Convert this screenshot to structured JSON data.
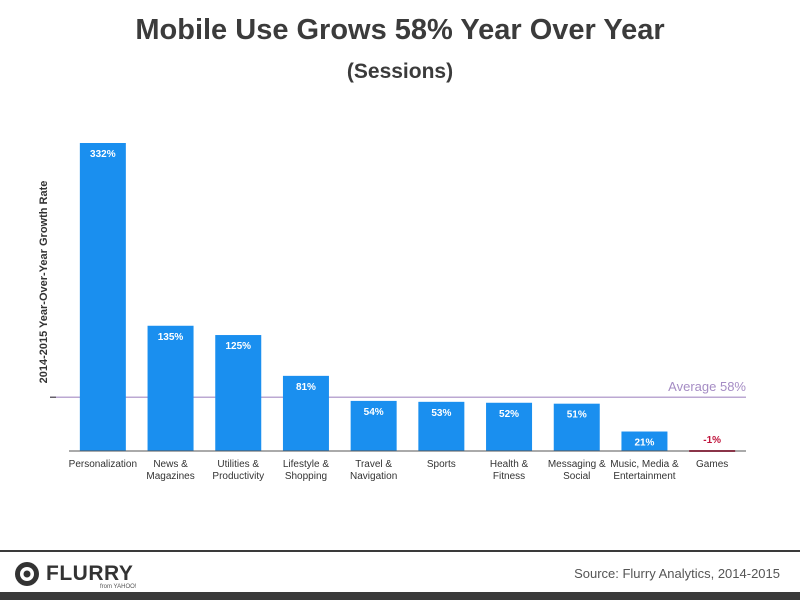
{
  "title": "Mobile Use Grows 58% Year Over Year",
  "subtitle": "(Sessions)",
  "footer": {
    "brand": "FLURRY",
    "brand_sub": "from YAHOO!",
    "source": "Source: Flurry Analytics, 2014-2015"
  },
  "colors": {
    "bar": "#1a8fef",
    "negative_bar": "#c0143c",
    "average_line": "#a58cc4",
    "axis": "#555555"
  },
  "chart_data": {
    "type": "bar",
    "title": "Mobile Use Grows 58% Year Over Year",
    "subtitle": "(Sessions)",
    "ylabel": "2014-2015 Year-Over-Year Growth Rate",
    "xlabel": "",
    "categories": [
      [
        "Personalization"
      ],
      [
        "News &",
        "Magazines"
      ],
      [
        "Utilities &",
        "Productivity"
      ],
      [
        "Lifestyle &",
        "Shopping"
      ],
      [
        "Travel &",
        "Navigation"
      ],
      [
        "Sports"
      ],
      [
        "Health &",
        "Fitness"
      ],
      [
        "Messaging &",
        "Social"
      ],
      [
        "Music, Media &",
        "Entertainment"
      ],
      [
        "Games"
      ]
    ],
    "values": [
      332,
      135,
      125,
      81,
      54,
      53,
      52,
      51,
      21,
      -1
    ],
    "value_labels": [
      "332%",
      "135%",
      "125%",
      "81%",
      "54%",
      "53%",
      "52%",
      "51%",
      "21%",
      "-1%"
    ],
    "average": {
      "value": 58,
      "label": "Average 58%"
    },
    "ylim": [
      -2,
      332
    ],
    "grid": false,
    "legend": "none"
  }
}
